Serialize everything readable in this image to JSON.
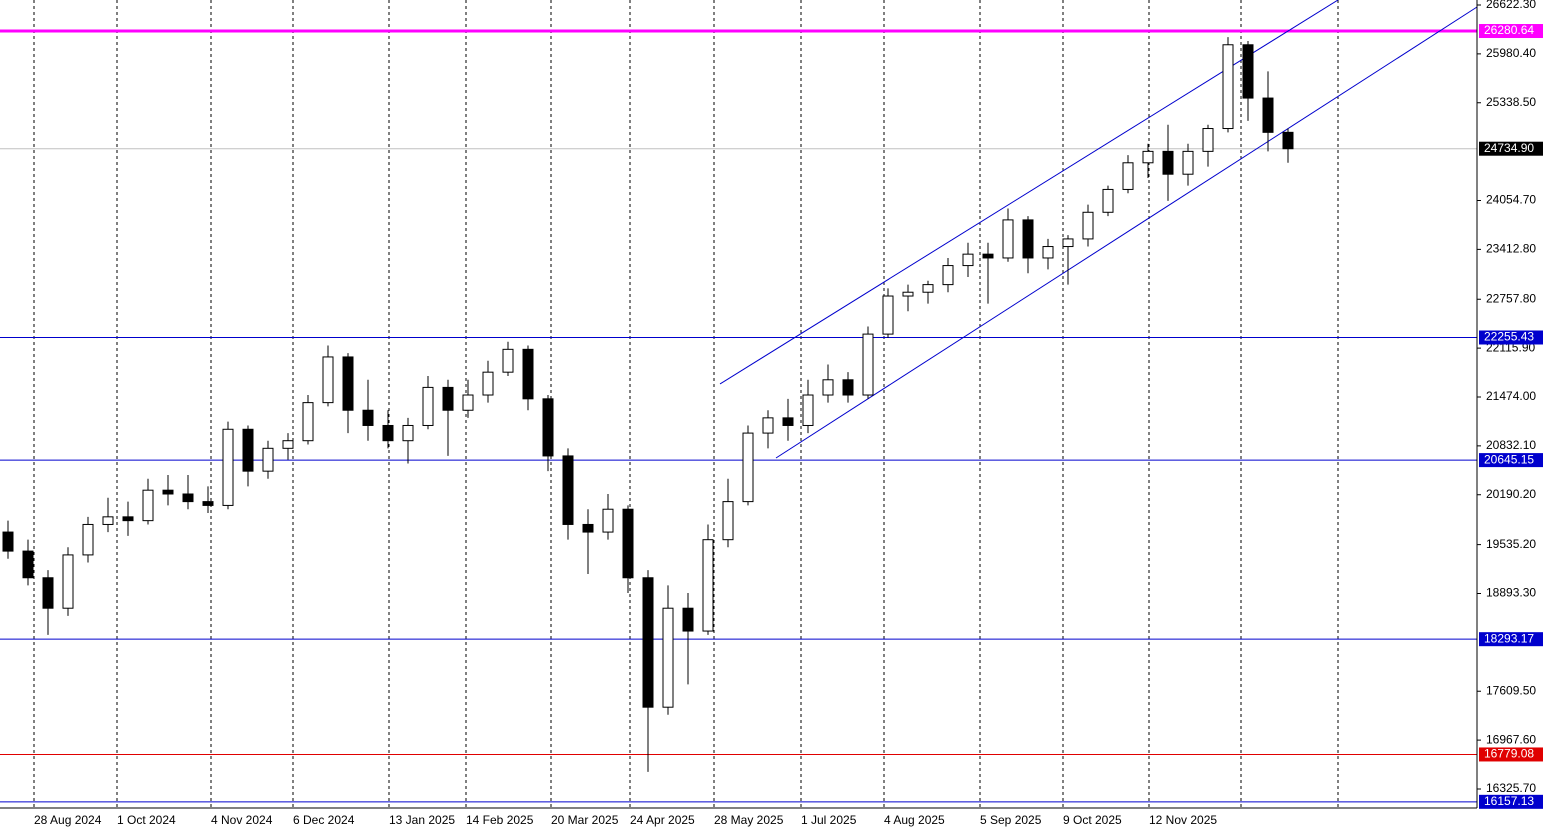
{
  "chart_data": {
    "type": "candlestick",
    "xlim": [
      0,
      369.25
    ],
    "ylim": [
      16076,
      26688
    ],
    "xticks": [
      {
        "value": 8.5,
        "label": "28 Aug 2024"
      },
      {
        "value": 29.25,
        "label": "1 Oct 2024"
      },
      {
        "value": 52.75,
        "label": "4 Nov 2024"
      },
      {
        "value": 73.25,
        "label": "6 Dec 2024"
      },
      {
        "value": 97.25,
        "label": "13 Jan 2025"
      },
      {
        "value": 116.5,
        "label": "14 Feb 2025"
      },
      {
        "value": 137.75,
        "label": "20 Mar 2025"
      },
      {
        "value": 157.5,
        "label": "24 Apr 2025"
      },
      {
        "value": 178.5,
        "label": "28 May 2025"
      },
      {
        "value": 200.25,
        "label": "1 Jul 2025"
      },
      {
        "value": 221,
        "label": "4 Aug 2025"
      },
      {
        "value": 245,
        "label": "5 Sep 2025"
      },
      {
        "value": 265.75,
        "label": "9 Oct 2025"
      },
      {
        "value": 287.25,
        "label": "12 Nov 2025"
      }
    ],
    "extra_vlines": [
      310.25,
      334.5
    ],
    "yticks": [
      {
        "value": 26622.3,
        "label": "26622.30"
      },
      {
        "value": 25980.4,
        "label": "25980.40"
      },
      {
        "value": 25338.5,
        "label": "25338.50"
      },
      {
        "value": 24054.7,
        "label": "24054.70"
      },
      {
        "value": 23412.8,
        "label": "23412.80"
      },
      {
        "value": 22757.8,
        "label": "22757.80"
      },
      {
        "value": 22115.9,
        "label": "22115.90"
      },
      {
        "value": 21474,
        "label": "21474.00"
      },
      {
        "value": 20832.1,
        "label": "20832.10"
      },
      {
        "value": 20190.2,
        "label": "20190.20"
      },
      {
        "value": 19535.2,
        "label": "19535.20"
      },
      {
        "value": 18893.3,
        "label": "18893.30"
      },
      {
        "value": 17609.5,
        "label": "17609.50"
      },
      {
        "value": 16967.6,
        "label": "16967.60"
      },
      {
        "value": 16325.7,
        "label": "16325.70"
      }
    ],
    "levels": [
      {
        "value": 26280.64,
        "color": "#ff00ff"
      },
      {
        "value": 22255.43,
        "color": "#0000cd"
      },
      {
        "value": 20645.15,
        "color": "#0000cd"
      },
      {
        "value": 18293.17,
        "color": "#0000cd"
      },
      {
        "value": 16779.08,
        "color": "#e00000"
      },
      {
        "value": 16157.13,
        "color": "#0000cd"
      }
    ],
    "last_price": {
      "value": 24734.9,
      "label": "24734.90"
    },
    "trendlines": [
      {
        "x": [
          180,
          334.5
        ],
        "y": [
          21645,
          26688
        ],
        "color": "#0000cd"
      },
      {
        "x": [
          194,
          369.25
        ],
        "y": [
          20673,
          26596
        ],
        "color": "#0000cd"
      }
    ],
    "candles": {
      "x": [
        2,
        7,
        12,
        17,
        22,
        27,
        32,
        37,
        42,
        47,
        52,
        57,
        62,
        67,
        72,
        77,
        82,
        87,
        92,
        97,
        102,
        107,
        112,
        117,
        122,
        127,
        132,
        137,
        142,
        147,
        152,
        157,
        162,
        167,
        172,
        177,
        182,
        187,
        192,
        197,
        202,
        207,
        212,
        217,
        222,
        227,
        232,
        237,
        242,
        247,
        252,
        257,
        262,
        267,
        272,
        277,
        282,
        287,
        292,
        297,
        302,
        307,
        312,
        317,
        322
      ],
      "open": [
        19700,
        19450,
        19100,
        18700,
        19400,
        19800,
        19900,
        19850,
        20250,
        20200,
        20100,
        20050,
        21050,
        20500,
        20800,
        20900,
        21400,
        22000,
        21300,
        21100,
        20900,
        21100,
        21600,
        21300,
        21500,
        21800,
        22100,
        21450,
        20700,
        19800,
        19700,
        20000,
        19100,
        17400,
        18700,
        18400,
        19600,
        20100,
        21000,
        21200,
        21100,
        21500,
        21700,
        21500,
        22300,
        22800,
        22850,
        22950,
        23200,
        23350,
        23300,
        23800,
        23300,
        23450,
        23550,
        23900,
        24200,
        24550,
        24700,
        24400,
        24700,
        25000,
        26100,
        25400,
        24950
      ],
      "high": [
        19850,
        19600,
        19200,
        19500,
        19900,
        20150,
        20100,
        20400,
        20450,
        20450,
        20300,
        21150,
        21100,
        20900,
        21000,
        21500,
        22150,
        22050,
        21700,
        21300,
        21200,
        21750,
        21700,
        21700,
        21950,
        22200,
        22150,
        21500,
        20800,
        20000,
        20200,
        20050,
        19200,
        19000,
        18900,
        19800,
        20400,
        21100,
        21300,
        21450,
        21700,
        21900,
        21800,
        22400,
        22900,
        22950,
        23000,
        23300,
        23500,
        23500,
        23950,
        23850,
        23550,
        23600,
        24000,
        24250,
        24650,
        24800,
        25050,
        24800,
        25050,
        26200,
        26150,
        25750,
        25000
      ],
      "low": [
        19350,
        19000,
        18350,
        18600,
        19300,
        19700,
        19650,
        19800,
        20050,
        20000,
        19950,
        20000,
        20300,
        20400,
        20650,
        20850,
        21350,
        21000,
        20900,
        20800,
        20600,
        21050,
        20700,
        21200,
        21400,
        21750,
        21300,
        20500,
        19600,
        19150,
        19600,
        18900,
        16550,
        17300,
        17700,
        18350,
        19500,
        20050,
        20800,
        20900,
        21000,
        21400,
        21400,
        21450,
        22250,
        22600,
        22700,
        22850,
        23050,
        22700,
        23250,
        23100,
        23150,
        22950,
        23450,
        23850,
        24150,
        24350,
        24050,
        24250,
        24500,
        24950,
        25100,
        24700,
        24550
      ],
      "close": [
        19450,
        19100,
        18700,
        19400,
        19800,
        19900,
        19850,
        20250,
        20200,
        20100,
        20050,
        21050,
        20500,
        20800,
        20900,
        21400,
        22000,
        21300,
        21100,
        20900,
        21100,
        21600,
        21300,
        21500,
        21800,
        22100,
        21450,
        20700,
        19800,
        19700,
        20000,
        19100,
        17400,
        18700,
        18400,
        19600,
        20100,
        21000,
        21200,
        21100,
        21500,
        21700,
        21500,
        22300,
        22800,
        22850,
        22950,
        23200,
        23350,
        23300,
        23800,
        23300,
        23450,
        23550,
        23900,
        24200,
        24550,
        24700,
        24400,
        24700,
        25000,
        26100,
        25400,
        24950,
        24734.9
      ]
    }
  }
}
